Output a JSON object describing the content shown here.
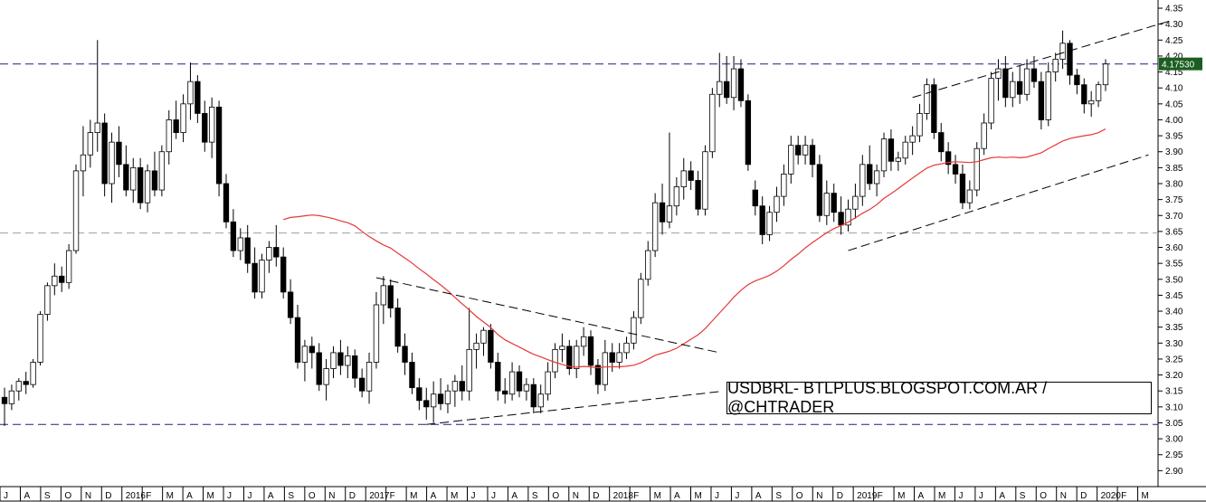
{
  "chart_data": {
    "type": "candlestick",
    "symbol_label": "USDBRL- BTLPLUS.BLOGSPOT.COM.AR / @CHTRADER",
    "ylim": [
      2.85,
      4.37
    ],
    "y_ticks": [
      "2.90",
      "2.95",
      "3.00",
      "3.05",
      "3.10",
      "3.15",
      "3.20",
      "3.25",
      "3.30",
      "3.35",
      "3.40",
      "3.45",
      "3.50",
      "3.55",
      "3.60",
      "3.65",
      "3.70",
      "3.75",
      "3.80",
      "3.85",
      "3.90",
      "3.95",
      "4.00",
      "4.05",
      "4.10",
      "4.15",
      "4.20",
      "4.25",
      "4.30",
      "4.35"
    ],
    "x_labels": [
      "J",
      "A",
      "S",
      "O",
      "N",
      "D",
      "2016",
      "F",
      "M",
      "A",
      "M",
      "J",
      "J",
      "A",
      "S",
      "O",
      "N",
      "D",
      "2017",
      "F",
      "M",
      "A",
      "M",
      "J",
      "J",
      "A",
      "S",
      "O",
      "N",
      "D",
      "2018",
      "F",
      "M",
      "A",
      "M",
      "J",
      "J",
      "A",
      "S",
      "O",
      "N",
      "D",
      "2019",
      "F",
      "M",
      "A",
      "M",
      "J",
      "J",
      "A",
      "S",
      "O",
      "N",
      "D",
      "2020",
      "F",
      "M"
    ],
    "last_price_label": "4.17530",
    "last_price": 4.1753,
    "grid": false,
    "horizontal_lines": [
      {
        "value": 4.175,
        "color": "#1a237e",
        "style": "dashed"
      },
      {
        "value": 3.645,
        "color": "#9e9e9e",
        "style": "dashed"
      },
      {
        "value": 3.045,
        "color": "#1a237e",
        "style": "dashed"
      }
    ],
    "moving_average_color": "#e53935",
    "candles": [
      {
        "o": 3.13,
        "h": 3.16,
        "l": 3.04,
        "c": 3.11
      },
      {
        "o": 3.11,
        "h": 3.17,
        "l": 3.09,
        "c": 3.15
      },
      {
        "o": 3.15,
        "h": 3.19,
        "l": 3.12,
        "c": 3.18
      },
      {
        "o": 3.18,
        "h": 3.21,
        "l": 3.14,
        "c": 3.17
      },
      {
        "o": 3.17,
        "h": 3.25,
        "l": 3.16,
        "c": 3.24
      },
      {
        "o": 3.24,
        "h": 3.4,
        "l": 3.23,
        "c": 3.39
      },
      {
        "o": 3.39,
        "h": 3.49,
        "l": 3.37,
        "c": 3.48
      },
      {
        "o": 3.48,
        "h": 3.55,
        "l": 3.45,
        "c": 3.51
      },
      {
        "o": 3.51,
        "h": 3.54,
        "l": 3.46,
        "c": 3.49
      },
      {
        "o": 3.49,
        "h": 3.61,
        "l": 3.47,
        "c": 3.59
      },
      {
        "o": 3.59,
        "h": 3.86,
        "l": 3.58,
        "c": 3.84
      },
      {
        "o": 3.84,
        "h": 3.98,
        "l": 3.76,
        "c": 3.89
      },
      {
        "o": 3.89,
        "h": 4.0,
        "l": 3.85,
        "c": 3.96
      },
      {
        "o": 3.96,
        "h": 4.25,
        "l": 3.9,
        "c": 3.99
      },
      {
        "o": 3.99,
        "h": 4.02,
        "l": 3.76,
        "c": 3.8
      },
      {
        "o": 3.8,
        "h": 3.96,
        "l": 3.74,
        "c": 3.93
      },
      {
        "o": 3.93,
        "h": 3.98,
        "l": 3.82,
        "c": 3.86
      },
      {
        "o": 3.86,
        "h": 3.92,
        "l": 3.76,
        "c": 3.78
      },
      {
        "o": 3.78,
        "h": 3.88,
        "l": 3.74,
        "c": 3.85
      },
      {
        "o": 3.85,
        "h": 3.88,
        "l": 3.72,
        "c": 3.74
      },
      {
        "o": 3.74,
        "h": 3.86,
        "l": 3.71,
        "c": 3.84
      },
      {
        "o": 3.84,
        "h": 3.9,
        "l": 3.76,
        "c": 3.78
      },
      {
        "o": 3.78,
        "h": 3.92,
        "l": 3.76,
        "c": 3.9
      },
      {
        "o": 3.9,
        "h": 4.03,
        "l": 3.86,
        "c": 4.0
      },
      {
        "o": 4.0,
        "h": 4.06,
        "l": 3.94,
        "c": 3.96
      },
      {
        "o": 3.96,
        "h": 4.08,
        "l": 3.93,
        "c": 4.05
      },
      {
        "o": 4.05,
        "h": 4.18,
        "l": 4.0,
        "c": 4.12
      },
      {
        "o": 4.12,
        "h": 4.14,
        "l": 3.99,
        "c": 4.02
      },
      {
        "o": 4.02,
        "h": 4.06,
        "l": 3.9,
        "c": 3.93
      },
      {
        "o": 3.93,
        "h": 4.07,
        "l": 3.88,
        "c": 4.04
      },
      {
        "o": 4.04,
        "h": 4.06,
        "l": 3.76,
        "c": 3.8
      },
      {
        "o": 3.8,
        "h": 3.83,
        "l": 3.66,
        "c": 3.68
      },
      {
        "o": 3.68,
        "h": 3.72,
        "l": 3.57,
        "c": 3.59
      },
      {
        "o": 3.59,
        "h": 3.66,
        "l": 3.56,
        "c": 3.63
      },
      {
        "o": 3.63,
        "h": 3.67,
        "l": 3.52,
        "c": 3.55
      },
      {
        "o": 3.55,
        "h": 3.6,
        "l": 3.44,
        "c": 3.46
      },
      {
        "o": 3.46,
        "h": 3.58,
        "l": 3.44,
        "c": 3.56
      },
      {
        "o": 3.56,
        "h": 3.62,
        "l": 3.52,
        "c": 3.6
      },
      {
        "o": 3.6,
        "h": 3.67,
        "l": 3.54,
        "c": 3.57
      },
      {
        "o": 3.57,
        "h": 3.6,
        "l": 3.44,
        "c": 3.46
      },
      {
        "o": 3.46,
        "h": 3.5,
        "l": 3.36,
        "c": 3.38
      },
      {
        "o": 3.38,
        "h": 3.42,
        "l": 3.22,
        "c": 3.24
      },
      {
        "o": 3.24,
        "h": 3.31,
        "l": 3.18,
        "c": 3.29
      },
      {
        "o": 3.29,
        "h": 3.32,
        "l": 3.22,
        "c": 3.27
      },
      {
        "o": 3.27,
        "h": 3.3,
        "l": 3.15,
        "c": 3.17
      },
      {
        "o": 3.17,
        "h": 3.25,
        "l": 3.12,
        "c": 3.22
      },
      {
        "o": 3.22,
        "h": 3.29,
        "l": 3.19,
        "c": 3.27
      },
      {
        "o": 3.27,
        "h": 3.31,
        "l": 3.2,
        "c": 3.23
      },
      {
        "o": 3.23,
        "h": 3.29,
        "l": 3.19,
        "c": 3.26
      },
      {
        "o": 3.26,
        "h": 3.28,
        "l": 3.16,
        "c": 3.19
      },
      {
        "o": 3.19,
        "h": 3.22,
        "l": 3.13,
        "c": 3.15
      },
      {
        "o": 3.15,
        "h": 3.27,
        "l": 3.11,
        "c": 3.24
      },
      {
        "o": 3.24,
        "h": 3.46,
        "l": 3.22,
        "c": 3.42
      },
      {
        "o": 3.42,
        "h": 3.51,
        "l": 3.36,
        "c": 3.48
      },
      {
        "o": 3.48,
        "h": 3.5,
        "l": 3.38,
        "c": 3.41
      },
      {
        "o": 3.41,
        "h": 3.44,
        "l": 3.27,
        "c": 3.29
      },
      {
        "o": 3.29,
        "h": 3.33,
        "l": 3.2,
        "c": 3.24
      },
      {
        "o": 3.24,
        "h": 3.27,
        "l": 3.14,
        "c": 3.16
      },
      {
        "o": 3.16,
        "h": 3.19,
        "l": 3.09,
        "c": 3.12
      },
      {
        "o": 3.12,
        "h": 3.16,
        "l": 3.06,
        "c": 3.1
      },
      {
        "o": 3.1,
        "h": 3.18,
        "l": 3.05,
        "c": 3.14
      },
      {
        "o": 3.14,
        "h": 3.19,
        "l": 3.09,
        "c": 3.11
      },
      {
        "o": 3.11,
        "h": 3.17,
        "l": 3.08,
        "c": 3.15
      },
      {
        "o": 3.15,
        "h": 3.2,
        "l": 3.1,
        "c": 3.18
      },
      {
        "o": 3.18,
        "h": 3.23,
        "l": 3.12,
        "c": 3.15
      },
      {
        "o": 3.15,
        "h": 3.41,
        "l": 3.12,
        "c": 3.28
      },
      {
        "o": 3.28,
        "h": 3.33,
        "l": 3.22,
        "c": 3.3
      },
      {
        "o": 3.3,
        "h": 3.35,
        "l": 3.26,
        "c": 3.34
      },
      {
        "o": 3.34,
        "h": 3.36,
        "l": 3.22,
        "c": 3.24
      },
      {
        "o": 3.24,
        "h": 3.27,
        "l": 3.12,
        "c": 3.15
      },
      {
        "o": 3.15,
        "h": 3.19,
        "l": 3.11,
        "c": 3.14
      },
      {
        "o": 3.14,
        "h": 3.24,
        "l": 3.12,
        "c": 3.21
      },
      {
        "o": 3.21,
        "h": 3.23,
        "l": 3.13,
        "c": 3.15
      },
      {
        "o": 3.15,
        "h": 3.19,
        "l": 3.12,
        "c": 3.17
      },
      {
        "o": 3.17,
        "h": 3.19,
        "l": 3.08,
        "c": 3.1
      },
      {
        "o": 3.1,
        "h": 3.17,
        "l": 3.08,
        "c": 3.14
      },
      {
        "o": 3.14,
        "h": 3.24,
        "l": 3.12,
        "c": 3.21
      },
      {
        "o": 3.21,
        "h": 3.3,
        "l": 3.19,
        "c": 3.28
      },
      {
        "o": 3.28,
        "h": 3.33,
        "l": 3.24,
        "c": 3.29
      },
      {
        "o": 3.29,
        "h": 3.31,
        "l": 3.2,
        "c": 3.22
      },
      {
        "o": 3.22,
        "h": 3.31,
        "l": 3.19,
        "c": 3.29
      },
      {
        "o": 3.29,
        "h": 3.35,
        "l": 3.26,
        "c": 3.32
      },
      {
        "o": 3.32,
        "h": 3.34,
        "l": 3.2,
        "c": 3.23
      },
      {
        "o": 3.23,
        "h": 3.25,
        "l": 3.14,
        "c": 3.17
      },
      {
        "o": 3.17,
        "h": 3.31,
        "l": 3.15,
        "c": 3.27
      },
      {
        "o": 3.27,
        "h": 3.3,
        "l": 3.21,
        "c": 3.24
      },
      {
        "o": 3.24,
        "h": 3.3,
        "l": 3.22,
        "c": 3.27
      },
      {
        "o": 3.27,
        "h": 3.32,
        "l": 3.25,
        "c": 3.3
      },
      {
        "o": 3.3,
        "h": 3.4,
        "l": 3.28,
        "c": 3.38
      },
      {
        "o": 3.38,
        "h": 3.52,
        "l": 3.36,
        "c": 3.5
      },
      {
        "o": 3.5,
        "h": 3.62,
        "l": 3.48,
        "c": 3.59
      },
      {
        "o": 3.59,
        "h": 3.77,
        "l": 3.57,
        "c": 3.74
      },
      {
        "o": 3.74,
        "h": 3.8,
        "l": 3.64,
        "c": 3.68
      },
      {
        "o": 3.68,
        "h": 3.96,
        "l": 3.66,
        "c": 3.73
      },
      {
        "o": 3.73,
        "h": 3.82,
        "l": 3.7,
        "c": 3.79
      },
      {
        "o": 3.79,
        "h": 3.88,
        "l": 3.75,
        "c": 3.84
      },
      {
        "o": 3.84,
        "h": 3.87,
        "l": 3.78,
        "c": 3.81
      },
      {
        "o": 3.81,
        "h": 3.84,
        "l": 3.7,
        "c": 3.72
      },
      {
        "o": 3.72,
        "h": 3.92,
        "l": 3.7,
        "c": 3.9
      },
      {
        "o": 3.9,
        "h": 4.1,
        "l": 3.88,
        "c": 4.08
      },
      {
        "o": 4.08,
        "h": 4.21,
        "l": 4.04,
        "c": 4.12
      },
      {
        "o": 4.12,
        "h": 4.2,
        "l": 4.05,
        "c": 4.07
      },
      {
        "o": 4.07,
        "h": 4.2,
        "l": 4.03,
        "c": 4.16
      },
      {
        "o": 4.16,
        "h": 4.19,
        "l": 4.04,
        "c": 4.06
      },
      {
        "o": 4.06,
        "h": 4.08,
        "l": 3.84,
        "c": 3.86
      },
      {
        "o": 3.78,
        "h": 3.81,
        "l": 3.7,
        "c": 3.73
      },
      {
        "o": 3.73,
        "h": 3.76,
        "l": 3.61,
        "c": 3.64
      },
      {
        "o": 3.64,
        "h": 3.73,
        "l": 3.62,
        "c": 3.71
      },
      {
        "o": 3.71,
        "h": 3.79,
        "l": 3.68,
        "c": 3.76
      },
      {
        "o": 3.76,
        "h": 3.86,
        "l": 3.73,
        "c": 3.83
      },
      {
        "o": 3.83,
        "h": 3.95,
        "l": 3.8,
        "c": 3.92
      },
      {
        "o": 3.92,
        "h": 3.95,
        "l": 3.86,
        "c": 3.89
      },
      {
        "o": 3.89,
        "h": 3.95,
        "l": 3.86,
        "c": 3.92
      },
      {
        "o": 3.92,
        "h": 3.94,
        "l": 3.82,
        "c": 3.86
      },
      {
        "o": 3.86,
        "h": 3.89,
        "l": 3.68,
        "c": 3.7
      },
      {
        "o": 3.7,
        "h": 3.81,
        "l": 3.67,
        "c": 3.77
      },
      {
        "o": 3.77,
        "h": 3.8,
        "l": 3.68,
        "c": 3.71
      },
      {
        "o": 3.71,
        "h": 3.76,
        "l": 3.64,
        "c": 3.67
      },
      {
        "o": 3.67,
        "h": 3.75,
        "l": 3.65,
        "c": 3.72
      },
      {
        "o": 3.72,
        "h": 3.8,
        "l": 3.69,
        "c": 3.76
      },
      {
        "o": 3.76,
        "h": 3.89,
        "l": 3.73,
        "c": 3.86
      },
      {
        "o": 3.86,
        "h": 3.92,
        "l": 3.78,
        "c": 3.8
      },
      {
        "o": 3.8,
        "h": 3.86,
        "l": 3.76,
        "c": 3.84
      },
      {
        "o": 3.84,
        "h": 3.96,
        "l": 3.82,
        "c": 3.94
      },
      {
        "o": 3.94,
        "h": 3.97,
        "l": 3.84,
        "c": 3.87
      },
      {
        "o": 3.87,
        "h": 3.9,
        "l": 3.84,
        "c": 3.88
      },
      {
        "o": 3.88,
        "h": 3.95,
        "l": 3.86,
        "c": 3.93
      },
      {
        "o": 3.93,
        "h": 3.98,
        "l": 3.89,
        "c": 3.95
      },
      {
        "o": 3.95,
        "h": 4.05,
        "l": 3.93,
        "c": 4.02
      },
      {
        "o": 4.02,
        "h": 4.13,
        "l": 4.0,
        "c": 4.11
      },
      {
        "o": 4.11,
        "h": 4.13,
        "l": 3.94,
        "c": 3.96
      },
      {
        "o": 3.96,
        "h": 3.99,
        "l": 3.87,
        "c": 3.9
      },
      {
        "o": 3.9,
        "h": 3.93,
        "l": 3.83,
        "c": 3.86
      },
      {
        "o": 3.86,
        "h": 3.89,
        "l": 3.8,
        "c": 3.83
      },
      {
        "o": 3.83,
        "h": 3.86,
        "l": 3.72,
        "c": 3.74
      },
      {
        "o": 3.74,
        "h": 3.81,
        "l": 3.72,
        "c": 3.78
      },
      {
        "o": 3.78,
        "h": 3.93,
        "l": 3.76,
        "c": 3.91
      },
      {
        "o": 3.91,
        "h": 4.02,
        "l": 3.89,
        "c": 3.99
      },
      {
        "o": 3.99,
        "h": 4.15,
        "l": 3.97,
        "c": 4.13
      },
      {
        "o": 4.13,
        "h": 4.19,
        "l": 4.06,
        "c": 4.16
      },
      {
        "o": 4.16,
        "h": 4.2,
        "l": 4.04,
        "c": 4.07
      },
      {
        "o": 4.07,
        "h": 4.15,
        "l": 4.04,
        "c": 4.12
      },
      {
        "o": 4.12,
        "h": 4.17,
        "l": 4.05,
        "c": 4.08
      },
      {
        "o": 4.08,
        "h": 4.19,
        "l": 4.06,
        "c": 4.16
      },
      {
        "o": 4.16,
        "h": 4.2,
        "l": 4.1,
        "c": 4.12
      },
      {
        "o": 4.12,
        "h": 4.15,
        "l": 3.97,
        "c": 4.0
      },
      {
        "o": 4.0,
        "h": 4.18,
        "l": 3.98,
        "c": 4.15
      },
      {
        "o": 4.15,
        "h": 4.21,
        "l": 4.12,
        "c": 4.19
      },
      {
        "o": 4.19,
        "h": 4.28,
        "l": 4.16,
        "c": 4.24
      },
      {
        "o": 4.24,
        "h": 4.25,
        "l": 4.11,
        "c": 4.14
      },
      {
        "o": 4.14,
        "h": 4.16,
        "l": 4.08,
        "c": 4.11
      },
      {
        "o": 4.11,
        "h": 4.13,
        "l": 4.02,
        "c": 4.05
      },
      {
        "o": 4.05,
        "h": 4.09,
        "l": 4.01,
        "c": 4.06
      },
      {
        "o": 4.06,
        "h": 4.12,
        "l": 4.04,
        "c": 4.11
      },
      {
        "o": 4.11,
        "h": 4.19,
        "l": 4.09,
        "c": 4.175
      }
    ]
  }
}
